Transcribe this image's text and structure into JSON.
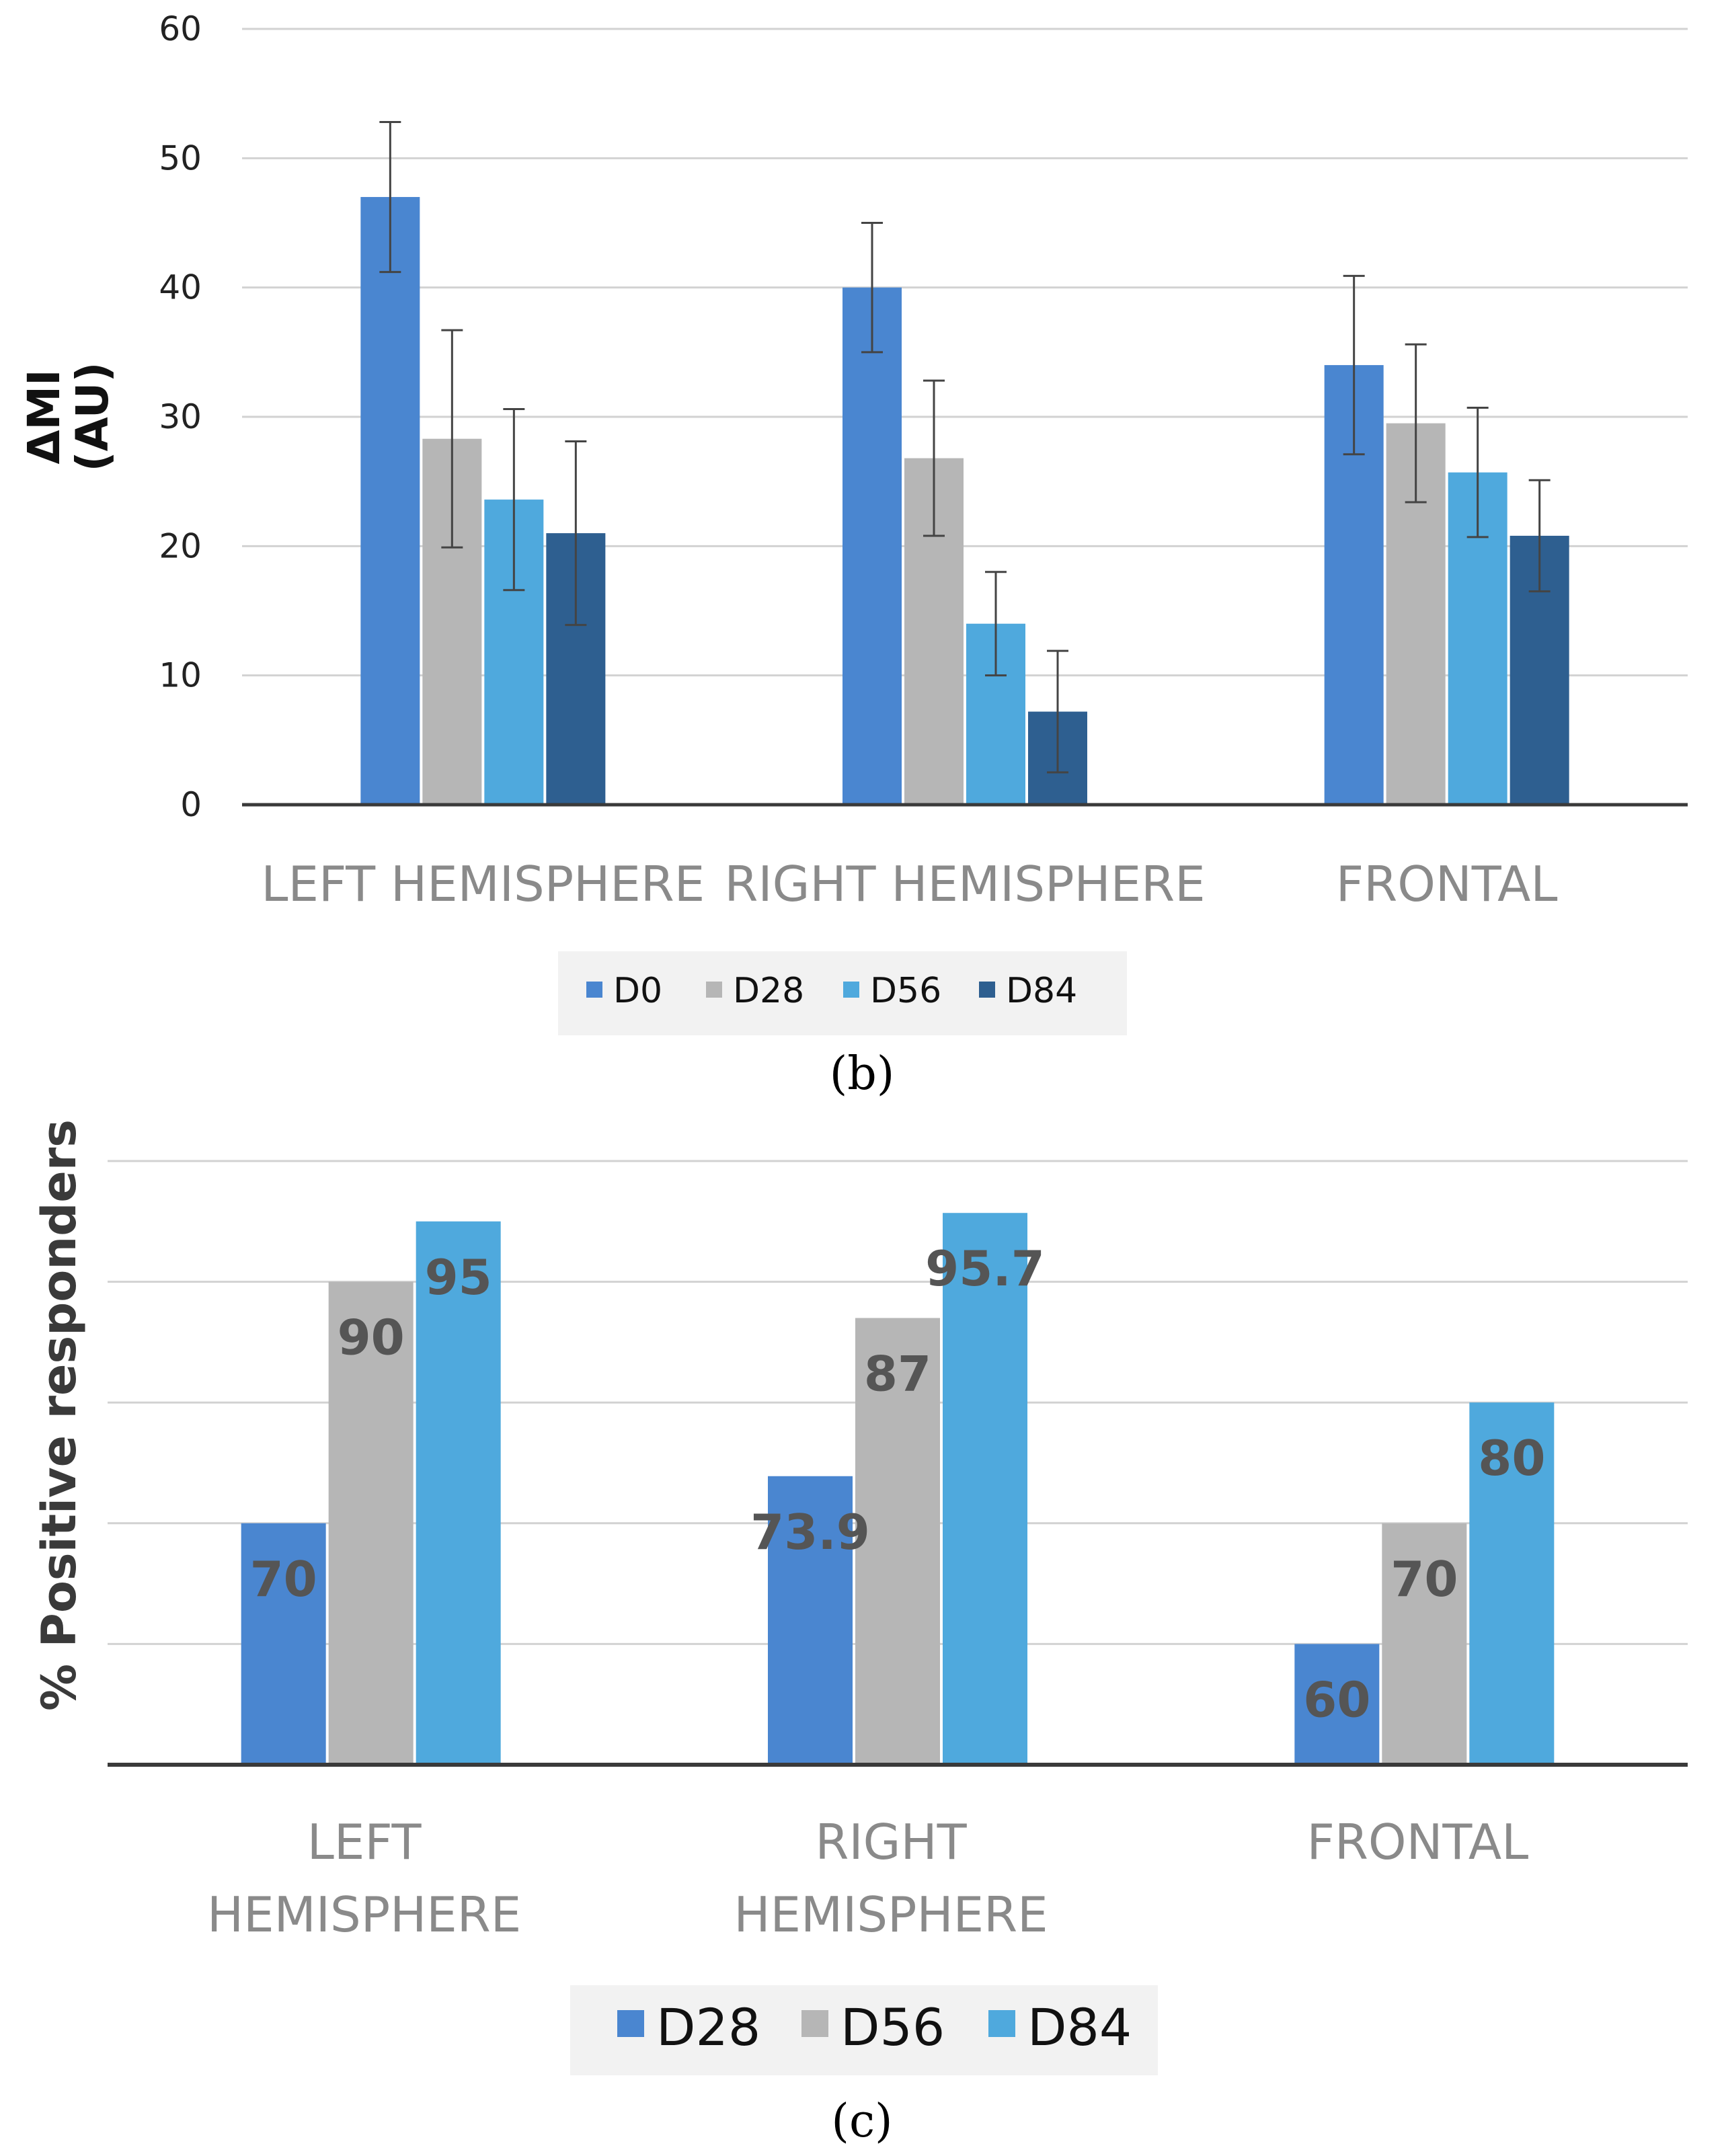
{
  "chart_data": [
    {
      "type": "bar",
      "panel_label": "(b)",
      "ylabel_line1": "ΔMI",
      "ylabel_line2": "(AU)",
      "ylim": [
        0,
        60
      ],
      "yticks": [
        "0",
        "10",
        "20",
        "30",
        "40",
        "50",
        "60"
      ],
      "grid": true,
      "categories": [
        "LEFT HEMISPHERE",
        "RIGHT HEMISPHERE",
        "FRONTAL"
      ],
      "series": [
        {
          "name": "D0",
          "color": "#4a86d0",
          "values": [
            47,
            40,
            34
          ],
          "errors": [
            5.8,
            5.0,
            6.9
          ]
        },
        {
          "name": "D28",
          "color": "#b6b6b6",
          "values": [
            28.3,
            26.8,
            29.5
          ],
          "errors": [
            8.4,
            6.0,
            6.1
          ]
        },
        {
          "name": "D56",
          "color": "#4fa9dd",
          "values": [
            23.6,
            14,
            25.7
          ],
          "errors": [
            7.0,
            4.0,
            5.0
          ]
        },
        {
          "name": "D84",
          "color": "#2e5f90",
          "values": [
            21,
            7.2,
            20.8
          ],
          "errors": [
            7.1,
            4.7,
            4.3
          ]
        }
      ]
    },
    {
      "type": "bar",
      "panel_label": "(c)",
      "ylabel": "%  Positive responders",
      "ylim": [
        50,
        100
      ],
      "grid": true,
      "categories": [
        [
          "LEFT",
          "HEMISPHERE"
        ],
        [
          "RIGHT",
          "HEMISPHERE"
        ],
        [
          "FRONTAL"
        ]
      ],
      "series": [
        {
          "name": "D28",
          "color": "#4a86d0",
          "values": [
            70,
            73.9,
            60
          ],
          "labels": [
            "70",
            "73.9",
            "60"
          ]
        },
        {
          "name": "D56",
          "color": "#b6b6b6",
          "values": [
            90,
            87,
            70
          ],
          "labels": [
            "90",
            "87",
            "70"
          ]
        },
        {
          "name": "D84",
          "color": "#4fa9dd",
          "values": [
            95,
            95.7,
            80
          ],
          "labels": [
            "95",
            "95.7",
            "80"
          ]
        }
      ]
    }
  ]
}
